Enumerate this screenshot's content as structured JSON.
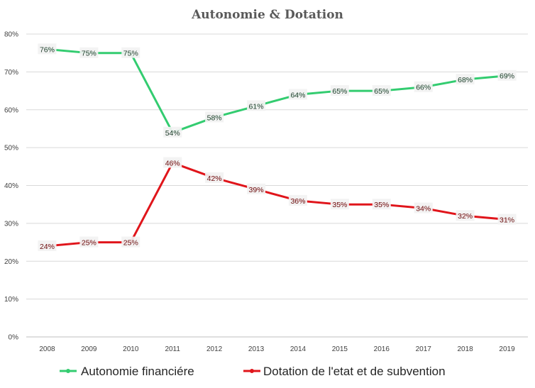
{
  "chart_data": {
    "type": "line",
    "title": "Autonomie & Dotation",
    "xlabel": "",
    "ylabel": "",
    "categories": [
      "2008",
      "2009",
      "2010",
      "2011",
      "2012",
      "2013",
      "2014",
      "2015",
      "2016",
      "2017",
      "2018",
      "2019"
    ],
    "ylim": [
      0,
      80
    ],
    "yticks": [
      "0%",
      "10%",
      "20%",
      "30%",
      "40%",
      "50%",
      "60%",
      "70%",
      "80%"
    ],
    "grid": true,
    "legend": "bottom",
    "series": [
      {
        "name": "Autonomie financiére",
        "color": "#33cc70",
        "values": [
          76,
          75,
          75,
          54,
          58,
          61,
          64,
          65,
          65,
          66,
          68,
          69
        ],
        "labels": [
          "76%",
          "75%",
          "75%",
          "54%",
          "58%",
          "61%",
          "64%",
          "65%",
          "65%",
          "66%",
          "68%",
          "69%"
        ],
        "label_color": "#1f3d2b"
      },
      {
        "name": "Dotation de l'etat et de subvention",
        "color": "#e0151b",
        "values": [
          24,
          25,
          25,
          46,
          42,
          39,
          36,
          35,
          35,
          34,
          32,
          31
        ],
        "labels": [
          "24%",
          "25%",
          "25%",
          "46%",
          "42%",
          "39%",
          "36%",
          "35%",
          "35%",
          "34%",
          "32%",
          "31%"
        ],
        "label_color": "#6b1010"
      }
    ]
  }
}
